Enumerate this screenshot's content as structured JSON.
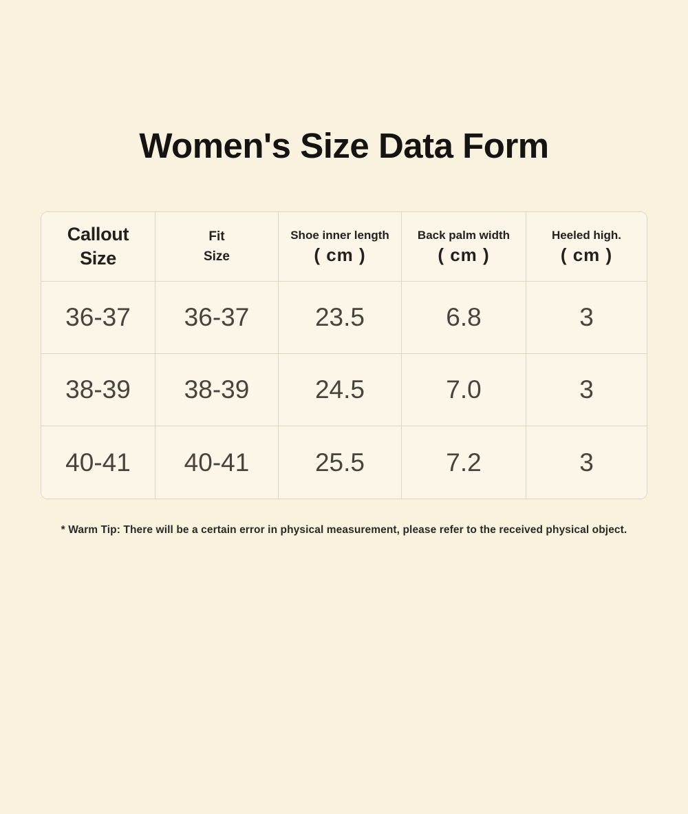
{
  "page": {
    "title": "Women's Size Data Form",
    "footnote": "* Warm Tip: There will be a certain error in physical measurement, please refer to the received physical object."
  },
  "table": {
    "headers": [
      {
        "line1": "Callout",
        "line2": "Size"
      },
      {
        "line1": "Fit",
        "line2": "Size"
      },
      {
        "line1": "Shoe inner length",
        "line2": "( cm )"
      },
      {
        "line1": "Back palm width",
        "line2": "( cm )"
      },
      {
        "line1": "Heeled high.",
        "line2": "( cm )"
      }
    ]
  },
  "chart_data": {
    "type": "table",
    "title": "Women's Size Data Form",
    "columns": [
      "Callout Size",
      "Fit Size",
      "Shoe inner length (cm)",
      "Back palm width (cm)",
      "Heeled high. (cm)"
    ],
    "rows": [
      [
        "36-37",
        "36-37",
        "23.5",
        "6.8",
        "3"
      ],
      [
        "38-39",
        "38-39",
        "24.5",
        "7.0",
        "3"
      ],
      [
        "40-41",
        "40-41",
        "25.5",
        "7.2",
        "3"
      ]
    ],
    "footnote": "* Warm Tip: There will be a certain error in physical measurement, please refer to the received physical object."
  },
  "colors": {
    "page_background": "#f9f2df",
    "cell_background": "#fbf6e8",
    "table_border": "#ddd6c3",
    "title_text": "#161412",
    "header_text": "#24211d",
    "data_text": "#48443b"
  }
}
